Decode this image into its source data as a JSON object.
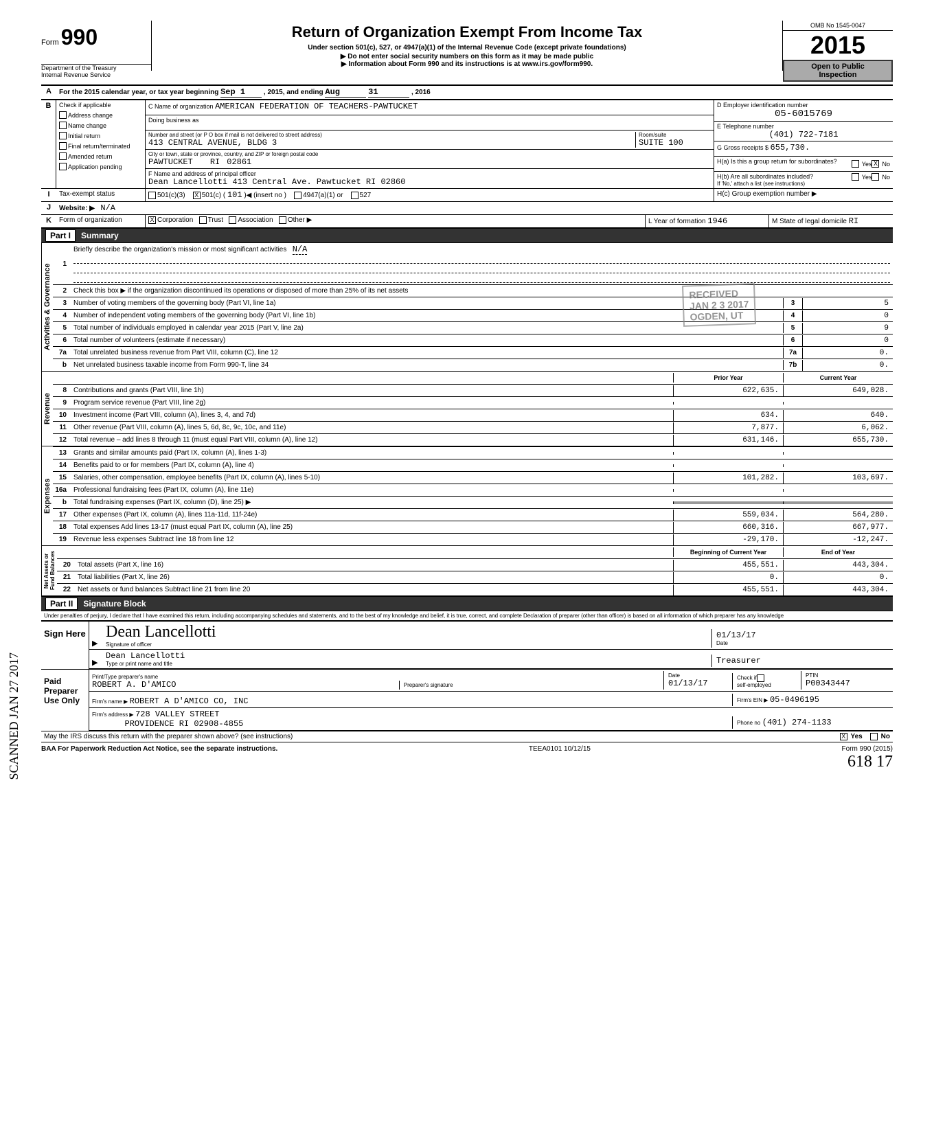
{
  "header": {
    "form_label": "Form",
    "form_no": "990",
    "title": "Return of Organization Exempt From Income Tax",
    "subtitle": "Under section 501(c), 527, or 4947(a)(1) of the Internal Revenue Code (except private foundations)",
    "note1": "▶ Do not enter social security numbers on this form as it may be made public",
    "note2": "▶ Information about Form 990 and its instructions is at www.irs.gov/form990.",
    "dept1": "Department of the Treasury",
    "dept2": "Internal Revenue Service",
    "omb": "OMB No 1545-0047",
    "year": "2015",
    "inspection1": "Open to Public",
    "inspection2": "Inspection"
  },
  "lineA": {
    "text": "For the 2015 calendar year, or tax year beginning",
    "begin": "Sep 1",
    "mid": ", 2015, and ending",
    "end_m": "Aug",
    "end_d": "31",
    "end_y": ", 2016"
  },
  "sectionB": {
    "check_label": "Check if applicable",
    "items": [
      "Address change",
      "Name change",
      "Initial return",
      "Final return/terminated",
      "Amended return",
      "Application pending"
    ],
    "c_label": "C  Name of organization",
    "org_name": "AMERICAN FEDERATION OF TEACHERS-PAWTUCKET",
    "dba_label": "Doing business as",
    "street_label": "Number and street (or P O  box if mail is not delivered to street address)",
    "room_label": "Room/suite",
    "street": "413 CENTRAL AVENUE, BLDG 3",
    "room": "SUITE 100",
    "city_label": "City or town, state or province, country, and ZIP or foreign postal code",
    "city": "PAWTUCKET",
    "state": "RI",
    "zip": "02861",
    "f_label": "F  Name and address of principal officer",
    "officer": "Dean Lancellotti 413 Central Ave. Pawtucket    RI 02860",
    "d_label": "D  Employer identification number",
    "ein": "05-6015769",
    "e_label": "E  Telephone number",
    "phone": "(401) 722-7181",
    "g_label": "G  Gross receipts $",
    "gross": "655,730.",
    "h_a": "H(a) Is this a group return for subordinates?",
    "h_b": "H(b) Are all subordinates included?",
    "h_note": "If 'No,' attach a list (see instructions)",
    "h_c": "H(c) Group exemption number ▶"
  },
  "lineI": {
    "label": "Tax-exempt status",
    "c3": "501(c)(3)",
    "c": "501(c)",
    "cnum": "101",
    "insert": "(insert no )",
    "a1": "4947(a)(1) or",
    "527": "527"
  },
  "lineJ": {
    "label": "Website: ▶",
    "value": "N/A"
  },
  "lineK": {
    "label": "Form of organization",
    "corp": "Corporation",
    "trust": "Trust",
    "assoc": "Association",
    "other": "Other ▶",
    "yof_label": "L Year of formation",
    "yof": "1946",
    "dom_label": "M State of legal domicile",
    "dom": "RI"
  },
  "part1": {
    "header": "Summary",
    "line1": "Briefly describe the organization's mission or most significant activities",
    "line1_val": "N/A",
    "line2": "Check this box ▶       if the organization discontinued its operations or disposed of more than 25% of its net assets",
    "activities": {
      "rows": [
        {
          "n": "3",
          "d": "Number of voting members of the governing body (Part VI, line 1a)",
          "k": "3",
          "v": "5"
        },
        {
          "n": "4",
          "d": "Number of independent voting members of the governing body (Part VI, line 1b)",
          "k": "4",
          "v": "0"
        },
        {
          "n": "5",
          "d": "Total number of individuals employed in calendar year 2015 (Part V, line 2a)",
          "k": "5",
          "v": "9"
        },
        {
          "n": "6",
          "d": "Total number of volunteers (estimate if necessary)",
          "k": "6",
          "v": "0"
        },
        {
          "n": "7a",
          "d": "Total unrelated business revenue from Part VIII, column (C), line 12",
          "k": "7a",
          "v": "0."
        },
        {
          "n": "b",
          "d": "Net unrelated business taxable income from Form 990-T, line 34",
          "k": "7b",
          "v": "0."
        }
      ]
    },
    "col_headers": {
      "prior": "Prior Year",
      "current": "Current Year"
    },
    "revenue": {
      "rows": [
        {
          "n": "8",
          "d": "Contributions and grants (Part VIII, line 1h)",
          "p": "622,635.",
          "c": "649,028."
        },
        {
          "n": "9",
          "d": "Program service revenue (Part VIII, line 2g)",
          "p": "",
          "c": ""
        },
        {
          "n": "10",
          "d": "Investment income (Part VIII, column (A), lines 3, 4, and 7d)",
          "p": "634.",
          "c": "640."
        },
        {
          "n": "11",
          "d": "Other revenue (Part VIII, column (A), lines 5, 6d, 8c, 9c, 10c, and 11e)",
          "p": "7,877.",
          "c": "6,062."
        },
        {
          "n": "12",
          "d": "Total revenue – add lines 8 through 11 (must equal Part VIII, column (A), line 12)",
          "p": "631,146.",
          "c": "655,730."
        }
      ]
    },
    "expenses": {
      "rows": [
        {
          "n": "13",
          "d": "Grants and similar amounts paid (Part IX, column (A), lines 1-3)",
          "p": "",
          "c": ""
        },
        {
          "n": "14",
          "d": "Benefits paid to or for members (Part IX, column (A), line 4)",
          "p": "",
          "c": ""
        },
        {
          "n": "15",
          "d": "Salaries, other compensation, employee benefits (Part IX, column (A), lines 5-10)",
          "p": "101,282.",
          "c": "103,697."
        },
        {
          "n": "16a",
          "d": "Professional fundraising fees (Part IX, column (A), line 11e)",
          "p": "",
          "c": ""
        },
        {
          "n": "b",
          "d": "Total fundraising expenses (Part IX, column (D), line 25) ▶",
          "p": "SHADE",
          "c": "SHADE"
        },
        {
          "n": "17",
          "d": "Other expenses (Part IX, column (A), lines 11a-11d, 11f-24e)",
          "p": "559,034.",
          "c": "564,280."
        },
        {
          "n": "18",
          "d": "Total expenses  Add lines 13-17 (must equal Part IX, column (A), line 25)",
          "p": "660,316.",
          "c": "667,977."
        },
        {
          "n": "19",
          "d": "Revenue less expenses  Subtract line 18 from line 12",
          "p": "-29,170.",
          "c": "-12,247."
        }
      ]
    },
    "net_headers": {
      "begin": "Beginning of Current Year",
      "end": "End of Year"
    },
    "net": {
      "rows": [
        {
          "n": "20",
          "d": "Total assets (Part X, line 16)",
          "p": "455,551.",
          "c": "443,304."
        },
        {
          "n": "21",
          "d": "Total liabilities (Part X, line 26)",
          "p": "0.",
          "c": "0."
        },
        {
          "n": "22",
          "d": "Net assets or fund balances  Subtract line 21 from line 20",
          "p": "455,551.",
          "c": "443,304."
        }
      ]
    },
    "stamp1": "RECEIVED",
    "stamp2": "JAN 2 3 2017",
    "stamp3": "OGDEN, UT"
  },
  "part2": {
    "header": "Signature Block",
    "penalties": "Under penalties of perjury, I declare that I have examined this return, including accompanying schedules and statements, and to the best of my knowledge and belief, it is true, correct, and complete  Declaration of preparer (other than officer) is based on all information of which preparer has any knowledge",
    "sign_here": "Sign Here",
    "sig_label": "Signature of officer",
    "date_label": "Date",
    "sig_date": "01/13/17",
    "name_label": "Type or print name and title",
    "name": "Dean Lancellotti",
    "title": "Treasurer",
    "paid": "Paid Preparer Use Only",
    "prep_name_label": "Print/Type preparer's name",
    "prep_name": "ROBERT A. D'AMICO",
    "prep_sig_label": "Preparer's signature",
    "prep_date_label": "Date",
    "prep_date": "01/13/17",
    "check_label": "Check         if",
    "self_emp": "self-employed",
    "ptin_label": "PTIN",
    "ptin": "P00343447",
    "firm_name_label": "Firm's name    ▶",
    "firm_name": "ROBERT A D'AMICO CO, INC",
    "firm_ein_label": "Firm's EIN ▶",
    "firm_ein": "05-0496195",
    "firm_addr_label": "Firm's address ▶",
    "firm_addr1": "728 VALLEY STREET",
    "firm_addr2": "PROVIDENCE                    RI   02908-4855",
    "phone_label": "Phone no",
    "firm_phone": "(401) 274-1133",
    "discuss": "May the IRS discuss this return with the preparer shown above? (see instructions)",
    "yes": "Yes",
    "no": "No"
  },
  "footer": {
    "left": "BAA  For Paperwork Reduction Act Notice, see the separate instructions.",
    "mid": "TEEA0101  10/12/15",
    "right": "Form 990 (2015)",
    "handwrite": "618        17"
  },
  "side_scan": "SCANNED JAN 27 2017",
  "colors": {
    "text": "#000000",
    "bg": "#ffffff",
    "shade": "#999999",
    "header_bg": "#333333"
  }
}
